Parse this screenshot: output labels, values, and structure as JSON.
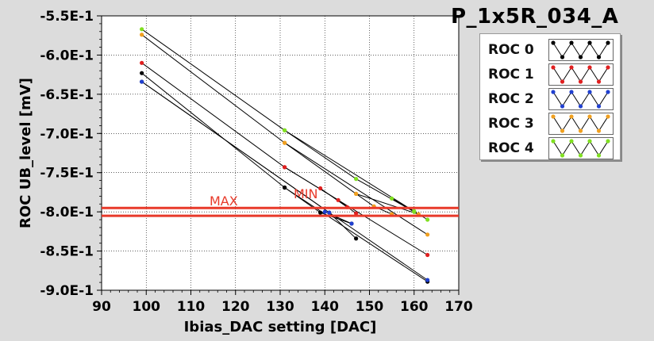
{
  "page_title": "P_1x5R_034_A",
  "chart_data": {
    "type": "line",
    "title": "P_1x5R_034_A",
    "xlabel": "Ibias_DAC setting [DAC]",
    "ylabel": "ROC UB_level [mV]",
    "xlim": [
      90,
      170
    ],
    "ylim": [
      -0.9,
      -0.55
    ],
    "xticks": [
      "90",
      "100",
      "110",
      "120",
      "130",
      "140",
      "150",
      "160",
      "170"
    ],
    "yticks": [
      "-5.5E-1",
      "-6.0E-1",
      "-6.5E-1",
      "-7.0E-1",
      "-7.5E-1",
      "-8.0E-1",
      "-8.5E-1",
      "-9.0E-1"
    ],
    "grid": true,
    "legend_position": "top-right",
    "reference_lines": [
      {
        "label": "MAX",
        "y": -0.795
      },
      {
        "label": "MIN",
        "y": -0.805
      }
    ],
    "series": [
      {
        "name": "ROC 0",
        "color": "#000000",
        "lines": [
          [
            [
              99,
              -0.623
            ],
            [
              131,
              -0.769
            ],
            [
              163,
              -0.889
            ]
          ],
          [
            [
              99,
              -0.634
            ],
            [
              141,
              -0.801
            ],
            [
              147,
              -0.834
            ]
          ],
          [
            [
              131,
              -0.769
            ],
            [
              139,
              -0.801
            ],
            [
              146,
              -0.815
            ]
          ]
        ]
      },
      {
        "name": "ROC 1",
        "color": "#e02020",
        "lines": [
          [
            [
              99,
              -0.61
            ],
            [
              131,
              -0.743
            ],
            [
              163,
              -0.855
            ]
          ],
          [
            [
              131,
              -0.743
            ],
            [
              143,
              -0.785
            ],
            [
              147,
              -0.802
            ]
          ],
          [
            [
              139,
              -0.77
            ],
            [
              145,
              -0.794
            ]
          ]
        ]
      },
      {
        "name": "ROC 2",
        "color": "#2040d0",
        "lines": [
          [
            [
              99,
              -0.634
            ],
            [
              141,
              -0.801
            ],
            [
              163,
              -0.887
            ]
          ],
          [
            [
              140,
              -0.8
            ],
            [
              146,
              -0.815
            ]
          ]
        ]
      },
      {
        "name": "ROC 3",
        "color": "#f0a020",
        "lines": [
          [
            [
              99,
              -0.574
            ],
            [
              131,
              -0.712
            ],
            [
              163,
              -0.829
            ]
          ],
          [
            [
              131,
              -0.712
            ],
            [
              147,
              -0.777
            ],
            [
              161,
              -0.803
            ]
          ],
          [
            [
              147,
              -0.777
            ],
            [
              151,
              -0.793
            ],
            [
              155,
              -0.803
            ]
          ]
        ]
      },
      {
        "name": "ROC 4",
        "color": "#80e020",
        "lines": [
          [
            [
              99,
              -0.567
            ],
            [
              131,
              -0.696
            ],
            [
              163,
              -0.81
            ]
          ],
          [
            [
              131,
              -0.696
            ],
            [
              147,
              -0.758
            ],
            [
              160,
              -0.8
            ]
          ],
          [
            [
              155,
              -0.783
            ],
            [
              160,
              -0.799
            ]
          ]
        ]
      }
    ]
  }
}
